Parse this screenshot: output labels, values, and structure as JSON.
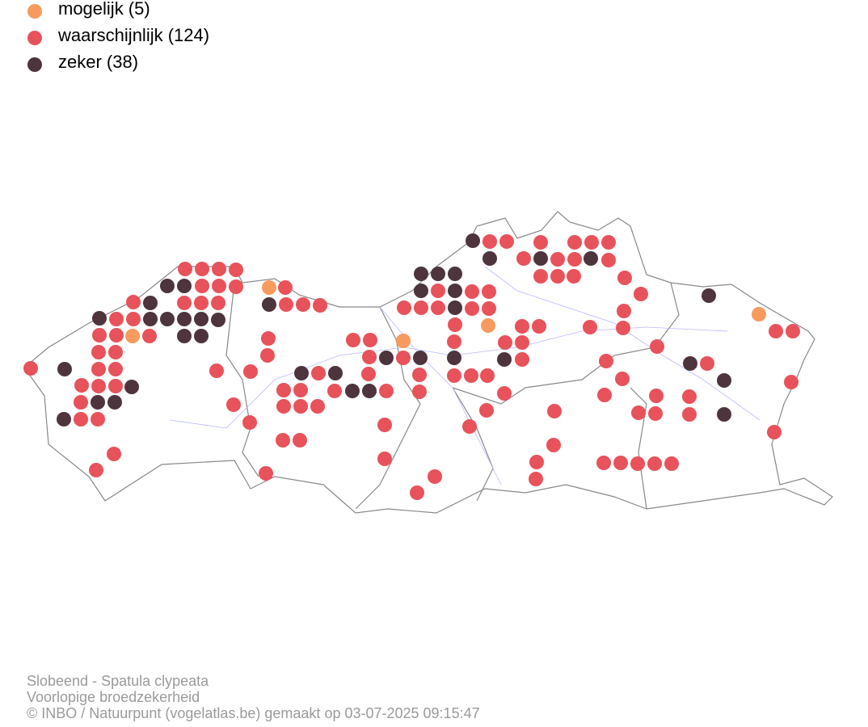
{
  "legend": {
    "items": [
      {
        "label": "mogelijk (5)",
        "color": "#f79a5e"
      },
      {
        "label": "waarschijnlijk (124)",
        "color": "#e8525a"
      },
      {
        "label": "zeker (38)",
        "color": "#4d343d"
      }
    ]
  },
  "footer": {
    "lines": [
      "Slobeend - Spatula clypeata",
      "Voorlopige broedzekerheid",
      "© INBO / Natuurpunt (vogelatlas.be) gemaakt op 03-07-2025 09:15:47"
    ]
  }
}
